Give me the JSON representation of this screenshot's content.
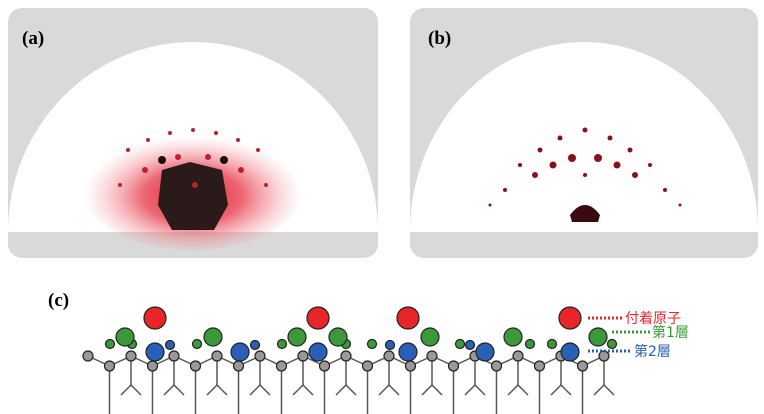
{
  "panels": [
    {
      "label": "(a)"
    },
    {
      "label": "(b)"
    },
    {
      "label": "(c)"
    }
  ],
  "legend": [
    {
      "label": "付着原子",
      "color": "#e8262a"
    },
    {
      "label": "第1層",
      "color": "#3a9a3a"
    },
    {
      "label": "第2層",
      "color": "#2a5fb8"
    }
  ]
}
